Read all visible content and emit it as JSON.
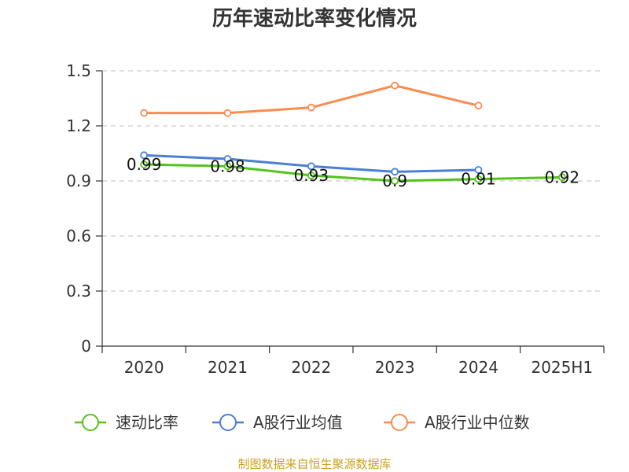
{
  "chart_data": {
    "type": "line",
    "title": "历年速动比率变化情况",
    "xlabel": "",
    "ylabel": "",
    "categories": [
      "2020",
      "2021",
      "2022",
      "2023",
      "2024",
      "2025H1"
    ],
    "ylim": [
      0,
      1.5
    ],
    "yticks": [
      0,
      0.3,
      0.6,
      0.9,
      1.2,
      1.5
    ],
    "ytick_labels": [
      "0",
      "0.3",
      "0.6",
      "0.9",
      "1.2",
      "1.5"
    ],
    "grid": true,
    "legend_position": "bottom",
    "series": [
      {
        "name": "速动比率",
        "color": "#52c41a",
        "values": [
          0.99,
          0.98,
          0.93,
          0.9,
          0.91,
          0.92
        ],
        "labels": [
          "0.99",
          "0.98",
          "0.93",
          "0.9",
          "0.91",
          "0.92"
        ]
      },
      {
        "name": "A股行业均值",
        "color": "#4a7fd4",
        "values": [
          1.04,
          1.02,
          0.98,
          0.95,
          0.96,
          null
        ]
      },
      {
        "name": "A股行业中位数",
        "color": "#fa8c50",
        "values": [
          1.27,
          1.27,
          1.3,
          1.42,
          1.31,
          null
        ]
      }
    ]
  },
  "source": "制图数据来自恒生聚源数据库"
}
